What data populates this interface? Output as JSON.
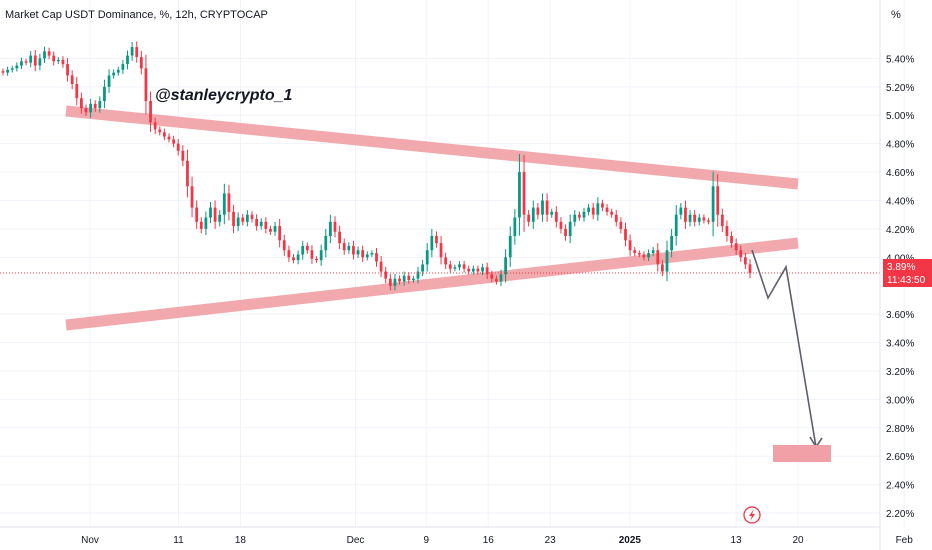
{
  "chart_data": {
    "type": "candlestick",
    "title": "Market Cap USDT Dominance, %, 12h, CRYPTOCAP",
    "unit_label": "%",
    "y_ticks": [
      "5.40%",
      "5.20%",
      "5.00%",
      "4.80%",
      "4.60%",
      "4.40%",
      "4.20%",
      "4.00%",
      "3.60%",
      "3.40%",
      "3.20%",
      "3.00%",
      "2.80%",
      "2.60%",
      "2.40%",
      "2.20%"
    ],
    "y_tick_values": [
      5.4,
      5.2,
      5.0,
      4.8,
      4.6,
      4.4,
      4.2,
      4.0,
      3.6,
      3.4,
      3.2,
      3.0,
      2.8,
      2.6,
      2.4,
      2.2
    ],
    "x_ticks": [
      {
        "label": "Nov",
        "day": 0,
        "bold": false
      },
      {
        "label": "11",
        "day": 10,
        "bold": false
      },
      {
        "label": "18",
        "day": 17,
        "bold": false
      },
      {
        "label": "Dec",
        "day": 30,
        "bold": false
      },
      {
        "label": "9",
        "day": 38,
        "bold": false
      },
      {
        "label": "16",
        "day": 45,
        "bold": false
      },
      {
        "label": "23",
        "day": 52,
        "bold": false
      },
      {
        "label": "2025",
        "day": 61,
        "bold": true
      },
      {
        "label": "13",
        "day": 73,
        "bold": false
      },
      {
        "label": "20",
        "day": 80,
        "bold": false
      },
      {
        "label": "Feb",
        "day": 92,
        "bold": false
      }
    ],
    "ylim": [
      2.13,
      5.6
    ],
    "last_price": {
      "value": 3.89,
      "label": "3.89%",
      "countdown": "11:43:50",
      "color": "#f23645"
    },
    "annotation": "@stanleycrypto_1",
    "colors": {
      "up": "#089981",
      "down": "#f23645",
      "band": "#f0a0a6",
      "arrow": "#5d606b",
      "grid": "#f0f3fa"
    },
    "closes": [
      5.3,
      5.32,
      5.33,
      5.35,
      5.38,
      5.37,
      5.42,
      5.35,
      5.4,
      5.45,
      5.42,
      5.38,
      5.39,
      5.36,
      5.28,
      5.22,
      5.12,
      5.05,
      5.02,
      5.08,
      5.05,
      5.1,
      5.2,
      5.28,
      5.3,
      5.32,
      5.36,
      5.42,
      5.48,
      5.41,
      5.33,
      5.1,
      4.95,
      4.9,
      4.88,
      4.85,
      4.83,
      4.8,
      4.75,
      4.68,
      4.5,
      4.35,
      4.25,
      4.2,
      4.28,
      4.35,
      4.25,
      4.3,
      4.45,
      4.32,
      4.22,
      4.28,
      4.25,
      4.3,
      4.27,
      4.22,
      4.25,
      4.2,
      4.18,
      4.22,
      4.12,
      4.05,
      4.0,
      3.98,
      4.02,
      4.08,
      4.05,
      3.99,
      3.98,
      4.05,
      4.15,
      4.25,
      4.18,
      4.1,
      4.05,
      4.08,
      4.02,
      4.05,
      4.0,
      4.02,
      4.03,
      3.97,
      3.9,
      3.85,
      3.8,
      3.85,
      3.83,
      3.87,
      3.84,
      3.85,
      3.9,
      3.95,
      4.05,
      4.15,
      4.1,
      4.0,
      3.95,
      3.92,
      3.93,
      3.95,
      3.92,
      3.9,
      3.92,
      3.9,
      3.93,
      3.88,
      3.85,
      3.83,
      3.88,
      4.0,
      4.15,
      4.28,
      4.6,
      4.3,
      4.25,
      4.35,
      4.3,
      4.4,
      4.3,
      4.32,
      4.25,
      4.2,
      4.15,
      4.25,
      4.3,
      4.28,
      4.32,
      4.35,
      4.3,
      4.38,
      4.35,
      4.32,
      4.3,
      4.25,
      4.2,
      4.12,
      4.05,
      4.03,
      4.02,
      4.0,
      4.03,
      4.05,
      3.95,
      3.9,
      4.05,
      4.15,
      4.3,
      4.35,
      4.25,
      4.3,
      4.25,
      4.28,
      4.26,
      4.25,
      4.5,
      4.3,
      4.22,
      4.15,
      4.1,
      4.05,
      4.0,
      3.95,
      3.89
    ]
  }
}
